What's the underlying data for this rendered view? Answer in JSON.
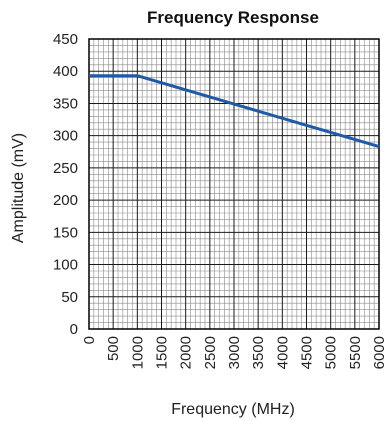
{
  "chart_data": {
    "type": "line",
    "title": "Frequency Response",
    "xlabel": "Frequency (MHz)",
    "ylabel": "Amplitude (mV)",
    "xlim": [
      0,
      6000
    ],
    "ylim": [
      0,
      450
    ],
    "x_ticks": [
      "0",
      "500",
      "1000",
      "1500",
      "2000",
      "2500",
      "3000",
      "3500",
      "4000",
      "4500",
      "5000",
      "5500",
      "6000"
    ],
    "y_ticks": [
      "0",
      "50",
      "100",
      "150",
      "200",
      "250",
      "300",
      "350",
      "400",
      "450"
    ],
    "grid": true,
    "series": [
      {
        "color": "#1f5aa6",
        "x": [
          0,
          1000,
          6000
        ],
        "y": [
          393,
          393,
          283
        ]
      }
    ]
  }
}
